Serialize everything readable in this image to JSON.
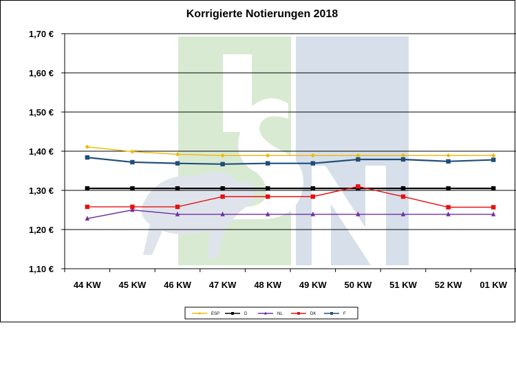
{
  "chart_data": {
    "type": "line",
    "title": "Korrigierte Notierungen 2018",
    "categories": [
      "44 KW",
      "45 KW",
      "46 KW",
      "47 KW",
      "48 KW",
      "49 KW",
      "50 KW",
      "51 KW",
      "52 KW",
      "01 KW"
    ],
    "y_ticks": [
      "1,10 €",
      "1,20 €",
      "1,30 €",
      "1,40 €",
      "1,50 €",
      "1,60 €",
      "1,70 €"
    ],
    "ylim": [
      1.1,
      1.7
    ],
    "grid": true,
    "legend_position": "bottom",
    "series": [
      {
        "name": "ESP",
        "color": "#f2b800",
        "marker": "diamond",
        "values": [
          1.411,
          1.399,
          1.392,
          1.389,
          1.389,
          1.389,
          1.389,
          1.389,
          1.389,
          1.389
        ]
      },
      {
        "name": "D",
        "color": "#000000",
        "marker": "square",
        "values": [
          1.305,
          1.305,
          1.305,
          1.305,
          1.305,
          1.305,
          1.305,
          1.305,
          1.305,
          1.305
        ]
      },
      {
        "name": "NL",
        "color": "#7030a0",
        "marker": "triangle",
        "values": [
          1.228,
          1.25,
          1.239,
          1.239,
          1.239,
          1.239,
          1.239,
          1.239,
          1.239,
          1.239
        ]
      },
      {
        "name": "DK",
        "color": "#e81010",
        "marker": "square",
        "values": [
          1.258,
          1.258,
          1.258,
          1.284,
          1.284,
          1.284,
          1.31,
          1.284,
          1.257,
          1.257
        ]
      },
      {
        "name": "F",
        "color": "#1f4e79",
        "marker": "square",
        "values": [
          1.384,
          1.372,
          1.369,
          1.367,
          1.369,
          1.369,
          1.379,
          1.379,
          1.374,
          1.378
        ]
      }
    ]
  },
  "watermark": {
    "letters": [
      "I",
      "S",
      "N"
    ],
    "colors": {
      "green": "#d9ead3",
      "blue": "#d6dfea",
      "grey": "#dfe4ec"
    }
  }
}
